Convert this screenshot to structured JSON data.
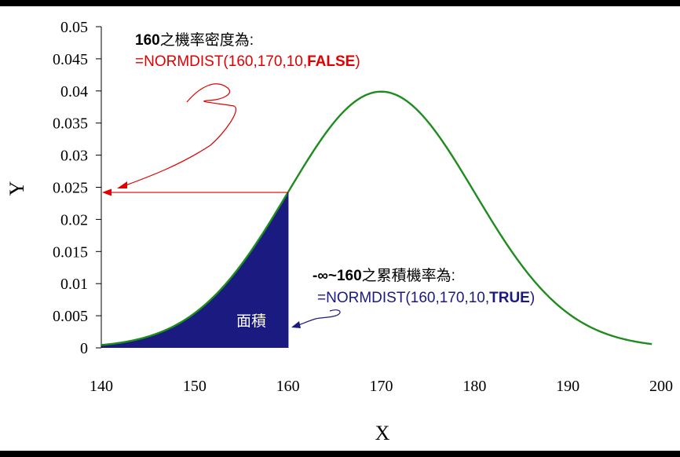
{
  "chart_data": {
    "type": "line",
    "title": "",
    "xlabel": "X",
    "ylabel": "Y",
    "xlim": [
      140,
      200
    ],
    "ylim": [
      0,
      0.05
    ],
    "x_ticks": [
      "140",
      "150",
      "160",
      "170",
      "180",
      "190",
      "200"
    ],
    "y_ticks": [
      "0",
      "0.005",
      "0.01",
      "0.015",
      "0.02",
      "0.025",
      "0.03",
      "0.035",
      "0.04",
      "0.045",
      "0.05"
    ],
    "grid": false,
    "series": [
      {
        "curve": "normal density",
        "mean": 170,
        "sd": 10,
        "x_start": 140,
        "x_end": 199,
        "color": "#1e8c1e"
      }
    ],
    "shaded_region": {
      "x_from": 140,
      "x_to": 160,
      "color": "#1a1a80",
      "label": "面積"
    },
    "marker_point": {
      "x": 160,
      "y": 0.0242,
      "color": "#e00000"
    },
    "annotations": {
      "pdf_title_bold": "160",
      "pdf_title_rest": "之機率密度為:",
      "pdf_formula_prefix": "=NORMDIST(160,170,10,",
      "pdf_formula_flag": "FALSE",
      "pdf_formula_suffix": ")",
      "pdf_color": "#e00000",
      "cdf_title_bold": "-∞~160",
      "cdf_title_rest": "之累積機率為:",
      "cdf_formula_prefix": "=NORMDIST(160,170,10,",
      "cdf_formula_flag": "TRUE",
      "cdf_formula_suffix": ")",
      "cdf_color": "#1a1a80"
    }
  }
}
